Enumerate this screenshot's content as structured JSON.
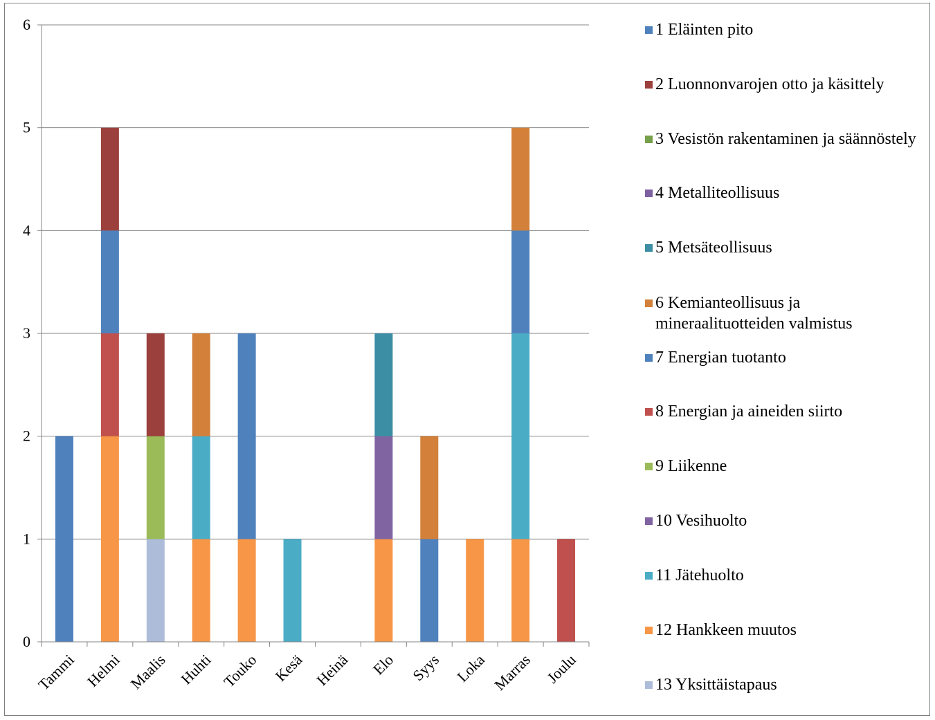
{
  "colors": {
    "1 Eläinten pito": "#4f81bd",
    "2 Luonnonvarojen otto ja käsittely": "#9c403d",
    "3 Vesistön rakentaminen ja säännöstely": "#77a04b",
    "4 Metalliteollisuus": "#7d60a0",
    "5 Metsäteollisuus": "#3b8ea3",
    "6 Kemianteollisuus ja mineraalituotteiden valmistus": "#d2803a",
    "7 Energian tuotanto": "#4f81bd",
    "8 Energian ja aineiden siirto": "#c0504d",
    "9 Liikenne": "#9bbb59",
    "10 Vesihuolto": "#8064a2",
    "11 Jätehuolto": "#4bacc6",
    "12 Hankkeen muutos": "#f79646",
    "13 Yksittäistapaus": "#adbcd9"
  },
  "chart_data": {
    "type": "bar",
    "stacked": true,
    "title": "",
    "xlabel": "",
    "ylabel": "",
    "ylim": [
      0,
      6
    ],
    "yticks": [
      "0",
      "1",
      "2",
      "3",
      "4",
      "5",
      "6"
    ],
    "grid": true,
    "legend_position": "right",
    "categories": [
      "Tammi",
      "Helmi",
      "Maalis",
      "Huhti",
      "Touko",
      "Kesä",
      "Heinä",
      "Elo",
      "Syys",
      "Loka",
      "Marras",
      "Joulu"
    ],
    "series": [
      {
        "name": "1 Eläinten pito",
        "values": [
          0,
          0,
          0,
          0,
          0,
          0,
          0,
          0,
          0,
          0,
          0,
          0
        ]
      },
      {
        "name": "2 Luonnonvarojen otto ja käsittely",
        "values": [
          0,
          1,
          1,
          0,
          0,
          0,
          0,
          0,
          0,
          0,
          0,
          0
        ]
      },
      {
        "name": "3 Vesistön rakentaminen ja säännöstely",
        "values": [
          0,
          0,
          0,
          0,
          0,
          0,
          0,
          0,
          0,
          0,
          0,
          0
        ]
      },
      {
        "name": "4 Metalliteollisuus",
        "values": [
          0,
          0,
          0,
          0,
          0,
          0,
          0,
          0,
          0,
          0,
          0,
          0
        ]
      },
      {
        "name": "5 Metsäteollisuus",
        "values": [
          0,
          0,
          0,
          0,
          0,
          0,
          0,
          1,
          0,
          0,
          0,
          0
        ]
      },
      {
        "name": "6 Kemianteollisuus ja mineraalituotteiden valmistus",
        "values": [
          0,
          0,
          0,
          1,
          0,
          0,
          0,
          0,
          1,
          0,
          1,
          0
        ]
      },
      {
        "name": "7 Energian tuotanto",
        "values": [
          2,
          1,
          0,
          0,
          2,
          0,
          0,
          0,
          1,
          0,
          1,
          0
        ]
      },
      {
        "name": "8 Energian ja aineiden siirto",
        "values": [
          0,
          1,
          0,
          0,
          0,
          0,
          0,
          0,
          0,
          0,
          0,
          1
        ]
      },
      {
        "name": "9 Liikenne",
        "values": [
          0,
          0,
          1,
          0,
          0,
          0,
          0,
          0,
          0,
          0,
          0,
          0
        ]
      },
      {
        "name": "10 Vesihuolto",
        "values": [
          0,
          0,
          0,
          0,
          0,
          0,
          0,
          1,
          0,
          0,
          0,
          0
        ]
      },
      {
        "name": "11 Jätehuolto",
        "values": [
          0,
          0,
          0,
          1,
          0,
          1,
          0,
          0,
          0,
          0,
          2,
          0
        ]
      },
      {
        "name": "12 Hankkeen muutos",
        "values": [
          0,
          2,
          0,
          1,
          1,
          0,
          0,
          1,
          0,
          1,
          1,
          0
        ]
      },
      {
        "name": "13 Yksittäistapaus",
        "values": [
          0,
          0,
          1,
          0,
          0,
          0,
          0,
          0,
          0,
          0,
          0,
          0
        ]
      }
    ],
    "stacks": [
      [
        {
          "series": "7 Energian tuotanto",
          "value": 2
        }
      ],
      [
        {
          "series": "12 Hankkeen muutos",
          "value": 2
        },
        {
          "series": "8 Energian ja aineiden siirto",
          "value": 1
        },
        {
          "series": "7 Energian tuotanto",
          "value": 1
        },
        {
          "series": "2 Luonnonvarojen otto ja käsittely",
          "value": 1
        }
      ],
      [
        {
          "series": "13 Yksittäistapaus",
          "value": 1
        },
        {
          "series": "9 Liikenne",
          "value": 1
        },
        {
          "series": "2 Luonnonvarojen otto ja käsittely",
          "value": 1
        }
      ],
      [
        {
          "series": "12 Hankkeen muutos",
          "value": 1
        },
        {
          "series": "11 Jätehuolto",
          "value": 1
        },
        {
          "series": "6 Kemianteollisuus ja mineraalituotteiden valmistus",
          "value": 1
        }
      ],
      [
        {
          "series": "12 Hankkeen muutos",
          "value": 1
        },
        {
          "series": "7 Energian tuotanto",
          "value": 2
        }
      ],
      [
        {
          "series": "11 Jätehuolto",
          "value": 1
        }
      ],
      [],
      [
        {
          "series": "12 Hankkeen muutos",
          "value": 1
        },
        {
          "series": "10 Vesihuolto",
          "value": 1
        },
        {
          "series": "5 Metsäteollisuus",
          "value": 1
        }
      ],
      [
        {
          "series": "7 Energian tuotanto",
          "value": 1
        },
        {
          "series": "6 Kemianteollisuus ja mineraalituotteiden valmistus",
          "value": 1
        }
      ],
      [
        {
          "series": "12 Hankkeen muutos",
          "value": 1
        }
      ],
      [
        {
          "series": "12 Hankkeen muutos",
          "value": 1
        },
        {
          "series": "11 Jätehuolto",
          "value": 2
        },
        {
          "series": "7 Energian tuotanto",
          "value": 1
        },
        {
          "series": "6 Kemianteollisuus ja mineraalituotteiden valmistus",
          "value": 1
        }
      ],
      [
        {
          "series": "8 Energian ja aineiden siirto",
          "value": 1
        }
      ]
    ]
  },
  "legend": {
    "items": [
      {
        "label": "1 Eläinten pito"
      },
      {
        "label": "2 Luonnonvarojen otto ja käsittely"
      },
      {
        "label": "3 Vesistön rakentaminen ja säännöstely"
      },
      {
        "label": "4 Metalliteollisuus"
      },
      {
        "label": "5 Metsäteollisuus"
      },
      {
        "label": "6 Kemianteollisuus ja mineraalituotteiden valmistus"
      },
      {
        "label": "7 Energian tuotanto"
      },
      {
        "label": "8 Energian ja aineiden siirto"
      },
      {
        "label": "9 Liikenne"
      },
      {
        "label": "10 Vesihuolto"
      },
      {
        "label": "11 Jätehuolto"
      },
      {
        "label": "12 Hankkeen muutos"
      },
      {
        "label": "13 Yksittäistapaus"
      }
    ]
  }
}
